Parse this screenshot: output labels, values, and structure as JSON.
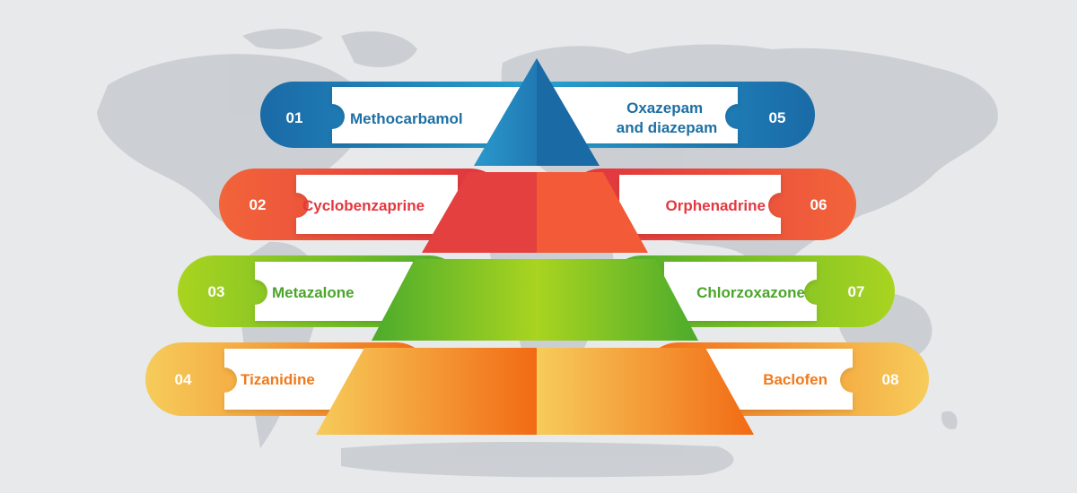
{
  "diagram": {
    "left_items": [
      {
        "number": "01",
        "label_lines": [
          "Methocarbamol"
        ],
        "color": "#1e6fa3"
      },
      {
        "number": "02",
        "label_lines": [
          "Cyclobenzaprine"
        ],
        "color": "#e3383f"
      },
      {
        "number": "03",
        "label_lines": [
          "Metazalone"
        ],
        "color": "#4aa52a"
      },
      {
        "number": "04",
        "label_lines": [
          "Tizanidine"
        ],
        "color": "#f07a1a"
      }
    ],
    "right_items": [
      {
        "number": "05",
        "label_lines": [
          "Oxazepam",
          "and diazepam"
        ],
        "color": "#1e6fa3"
      },
      {
        "number": "06",
        "label_lines": [
          "Orphenadrine"
        ],
        "color": "#e3383f"
      },
      {
        "number": "07",
        "label_lines": [
          "Chlorzoxazone"
        ],
        "color": "#4aa52a"
      },
      {
        "number": "08",
        "label_lines": [
          "Baclofen"
        ],
        "color": "#f07a1a"
      }
    ],
    "tier_colors": [
      {
        "light": "#29a4d4",
        "dark": "#1a6aa6"
      },
      {
        "light": "#f2643a",
        "dark": "#e0323e"
      },
      {
        "light": "#a9d420",
        "dark": "#4cab2c"
      },
      {
        "light": "#f6cc5a",
        "dark": "#f26a14"
      }
    ],
    "background_color": "#e7e9eb",
    "map_color": "#c9cdd1"
  }
}
